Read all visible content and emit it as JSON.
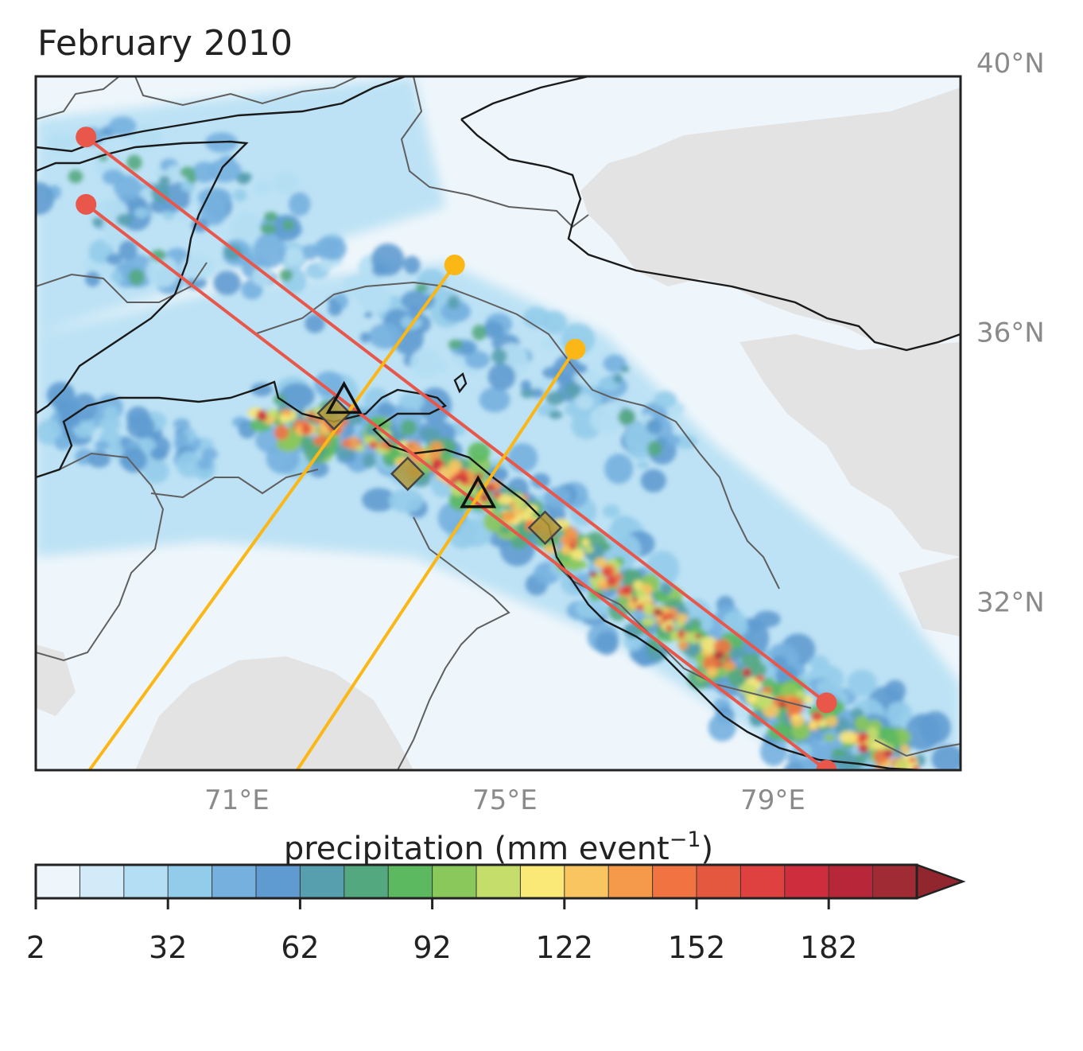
{
  "title": "February 2010",
  "map": {
    "lon_ticks": [
      {
        "value": 71,
        "label": "71°E"
      },
      {
        "value": 75,
        "label": "75°E"
      },
      {
        "value": 79,
        "label": "79°E"
      }
    ],
    "lat_ticks": [
      {
        "value": 40,
        "label": "40°N"
      },
      {
        "value": 36,
        "label": "36°N"
      },
      {
        "value": 32,
        "label": "32°N"
      }
    ],
    "extent": {
      "lon": [
        68,
        81.8
      ],
      "lat": [
        29.5,
        39.8
      ]
    },
    "background_color": "#eef6fb",
    "no_data_color": "#e3e3e3",
    "transects": [
      {
        "color": "#e8574a",
        "start": [
          68.75,
          38.9
        ],
        "end": [
          79.8,
          30.5
        ]
      },
      {
        "color": "#e8574a",
        "start": [
          68.75,
          37.9
        ],
        "end": [
          79.8,
          29.5
        ]
      },
      {
        "color": "#fbb716",
        "start": [
          74.25,
          37.0
        ],
        "end": [
          68.8,
          29.5
        ]
      },
      {
        "color": "#fbb716",
        "start": [
          76.05,
          35.75
        ],
        "end": [
          71.9,
          29.5
        ]
      }
    ],
    "stations_triangle": [
      {
        "lon": 72.6,
        "lat": 35.0
      },
      {
        "lon": 74.6,
        "lat": 33.6
      }
    ],
    "stations_diamond": [
      {
        "lon": 72.45,
        "lat": 34.8
      },
      {
        "lon": 73.55,
        "lat": 33.9
      },
      {
        "lon": 75.6,
        "lat": 33.1
      }
    ]
  },
  "colorbar": {
    "label": "precipitation (mm event",
    "label_sup": "−1",
    "label_close": ")",
    "ticks": [
      "2",
      "32",
      "62",
      "92",
      "122",
      "152",
      "182"
    ],
    "levels_min": 2,
    "levels_step": 10,
    "extend": "max",
    "colors": [
      "#eef6fb",
      "#d3eaf8",
      "#b4def3",
      "#93ccea",
      "#75b0df",
      "#5f9bd0",
      "#579faf",
      "#54a880",
      "#5cb960",
      "#8bc85b",
      "#c5de6b",
      "#fae877",
      "#f8c561",
      "#f49a4a",
      "#f07341",
      "#e55840",
      "#de4140",
      "#cd2d3c",
      "#b82739",
      "#a02b35",
      "#92262f"
    ]
  }
}
